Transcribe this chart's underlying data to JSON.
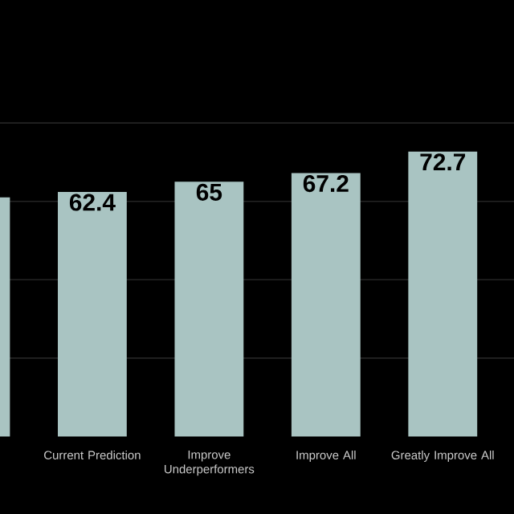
{
  "chart_data": {
    "type": "bar",
    "categories": [
      null,
      "Current Prediction",
      "Improve Underperformers",
      "Improve All",
      "Greatly Improve All"
    ],
    "values": [
      61.0,
      62.4,
      65,
      67.2,
      72.7
    ],
    "value_labels": [
      null,
      "62.4",
      "65",
      "67.2",
      "72.7"
    ],
    "color": "#a9c4c2",
    "yticks": [
      {
        "value": 20,
        "label": null
      },
      {
        "value": 40,
        "label": null
      },
      {
        "value": 60,
        "label": null
      },
      {
        "value": 80,
        "label": null
      }
    ],
    "grid": "y",
    "tick_labels": "x"
  }
}
